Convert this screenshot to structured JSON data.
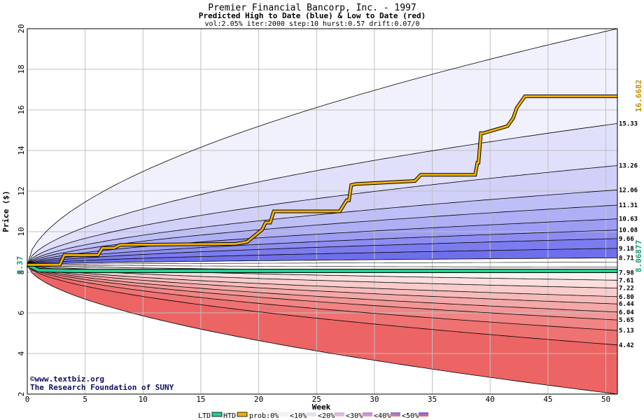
{
  "chart_data": {
    "type": "area",
    "title": "Premier Financial Bancorp, Inc. - 1997",
    "subtitle": "Predicted High to Date (blue) &  Low to Date (red)",
    "params": "vol:2.05% iter:2000 step:10 hurst:0.57 drift:0.07/0",
    "xlabel": "Week",
    "ylabel": "Price ($)",
    "xlim": [
      0,
      51
    ],
    "ylim": [
      2,
      20
    ],
    "xticks": [
      0,
      5,
      10,
      15,
      20,
      25,
      30,
      35,
      40,
      45,
      50
    ],
    "yticks": [
      2,
      4,
      6,
      8,
      10,
      12,
      14,
      16,
      18,
      20
    ],
    "grid": true,
    "start_price": 8.37,
    "start_label": "8.37",
    "htd_final_label": "16.6682",
    "ltd_final_label": "8.06877",
    "high_quantiles": [
      {
        "end": 20.0,
        "label": ""
      },
      {
        "end": 15.33,
        "label": "15.33"
      },
      {
        "end": 13.26,
        "label": "13.26"
      },
      {
        "end": 12.06,
        "label": "12.06"
      },
      {
        "end": 11.31,
        "label": "11.31"
      },
      {
        "end": 10.63,
        "label": "10.63"
      },
      {
        "end": 10.08,
        "label": "10.08"
      },
      {
        "end": 9.66,
        "label": "9.66"
      },
      {
        "end": 9.18,
        "label": "9.18"
      },
      {
        "end": 8.71,
        "label": "8.71"
      }
    ],
    "low_quantiles": [
      {
        "end": 7.98,
        "label": "7.98"
      },
      {
        "end": 7.61,
        "label": "7.61"
      },
      {
        "end": 7.22,
        "label": "7.22"
      },
      {
        "end": 6.8,
        "label": "6.80"
      },
      {
        "end": 6.44,
        "label": "6.44"
      },
      {
        "end": 6.04,
        "label": "6.04"
      },
      {
        "end": 5.65,
        "label": "5.65"
      },
      {
        "end": 5.13,
        "label": "5.13"
      },
      {
        "end": 4.42,
        "label": "4.42"
      },
      {
        "end": 2.0,
        "label": ""
      }
    ],
    "htd_series": {
      "name": "HTD",
      "x": [
        0,
        2.8,
        3.2,
        6.1,
        6.5,
        7.5,
        8.0,
        18.0,
        19.0,
        20.3,
        20.6,
        21.0,
        21.3,
        27.0,
        27.6,
        27.8,
        28.0,
        28.4,
        33.5,
        34.0,
        34.5,
        38.7,
        38.9,
        39.0,
        39.2,
        39.4,
        40.0,
        41.5,
        42.0,
        42.3,
        43.0,
        51
      ],
      "y": [
        8.37,
        8.37,
        8.85,
        8.85,
        9.2,
        9.2,
        9.35,
        9.4,
        9.5,
        10.1,
        10.45,
        10.45,
        11.0,
        11.0,
        11.55,
        11.55,
        12.3,
        12.35,
        12.5,
        12.8,
        12.8,
        12.8,
        13.4,
        13.4,
        14.85,
        14.85,
        14.95,
        15.2,
        15.6,
        16.1,
        16.67,
        16.67
      ]
    },
    "ltd_series": {
      "name": "LTD",
      "x": [
        0,
        1,
        4,
        51
      ],
      "y": [
        8.37,
        8.1,
        8.07,
        8.07
      ]
    },
    "legend": {
      "items": [
        "LTD",
        "HTD",
        "prob:0%",
        "<10%",
        "<20%",
        "<30%",
        "<40%",
        "<50%"
      ]
    }
  },
  "credit": {
    "line1": "www.textbiz.org",
    "line2": "The Research Foundation of SUNY"
  },
  "colors": {
    "high_bands": [
      "#f1f1fd",
      "#e0e0fb",
      "#d0d0f9",
      "#bfbff7",
      "#afaff5",
      "#9d9df3",
      "#8d8df1",
      "#7c7cef",
      "#6f6fec"
    ],
    "low_bands": [
      "#fdf0f0",
      "#fbdede",
      "#f9cccc",
      "#f7baba",
      "#f5a8a8",
      "#f39696",
      "#f18484",
      "#ef7272",
      "#ec6464"
    ],
    "htd": "#f0b000",
    "ltd": "#20d090",
    "grid": "#c0c0c0"
  }
}
